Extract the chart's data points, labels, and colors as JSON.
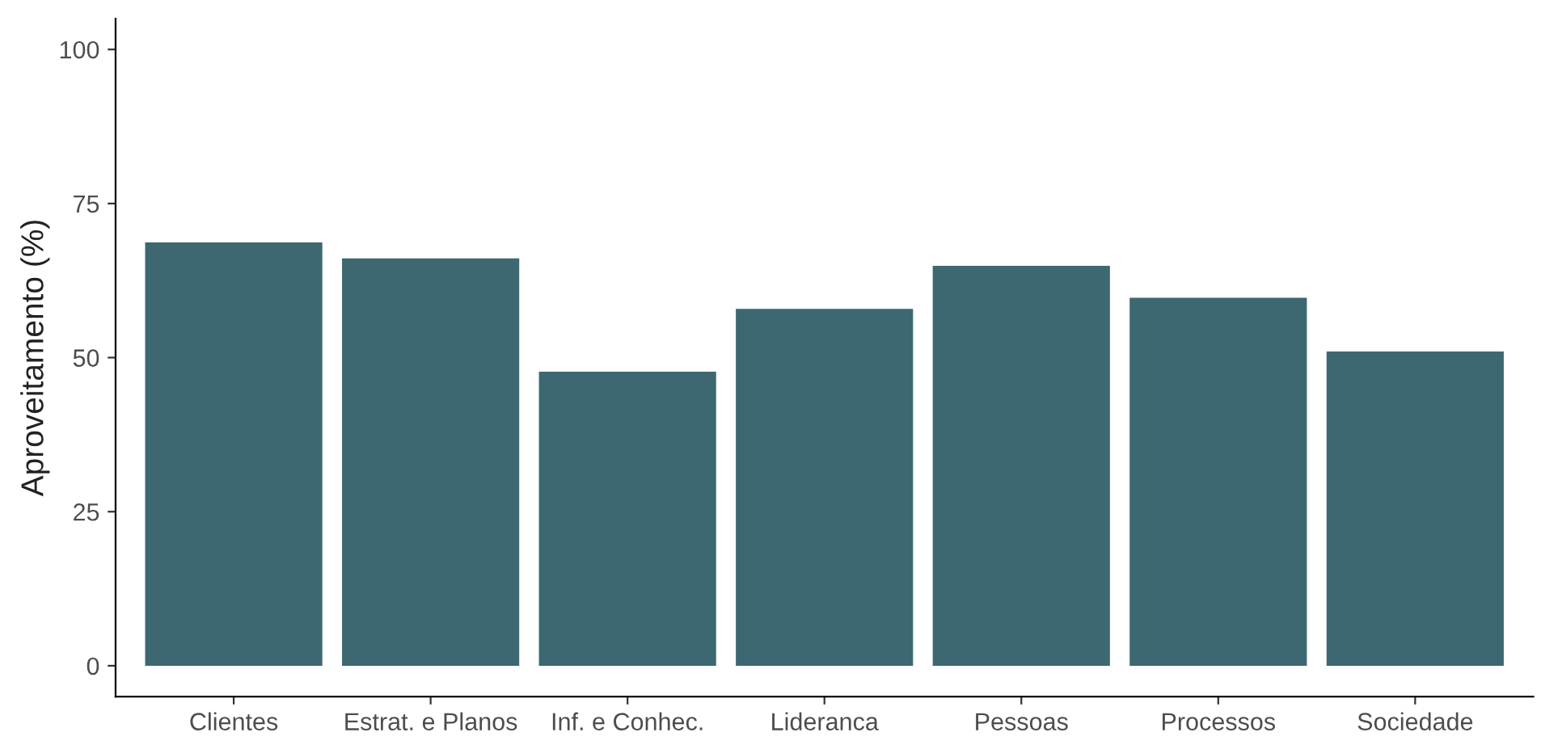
{
  "chart_data": {
    "type": "bar",
    "ylabel": "Aproveitamento (%)",
    "categories": [
      "Clientes",
      "Estrat. e Planos",
      "Inf. e Conhec.",
      "Lideranca",
      "Pessoas",
      "Processos",
      "Sociedade"
    ],
    "values": [
      68.7,
      66.1,
      47.7,
      57.9,
      64.9,
      59.7,
      51.0
    ],
    "color": "#3d6872",
    "ylim": [
      -5,
      105
    ],
    "yticks": [
      0,
      25,
      50,
      75,
      100
    ],
    "grid": false
  }
}
